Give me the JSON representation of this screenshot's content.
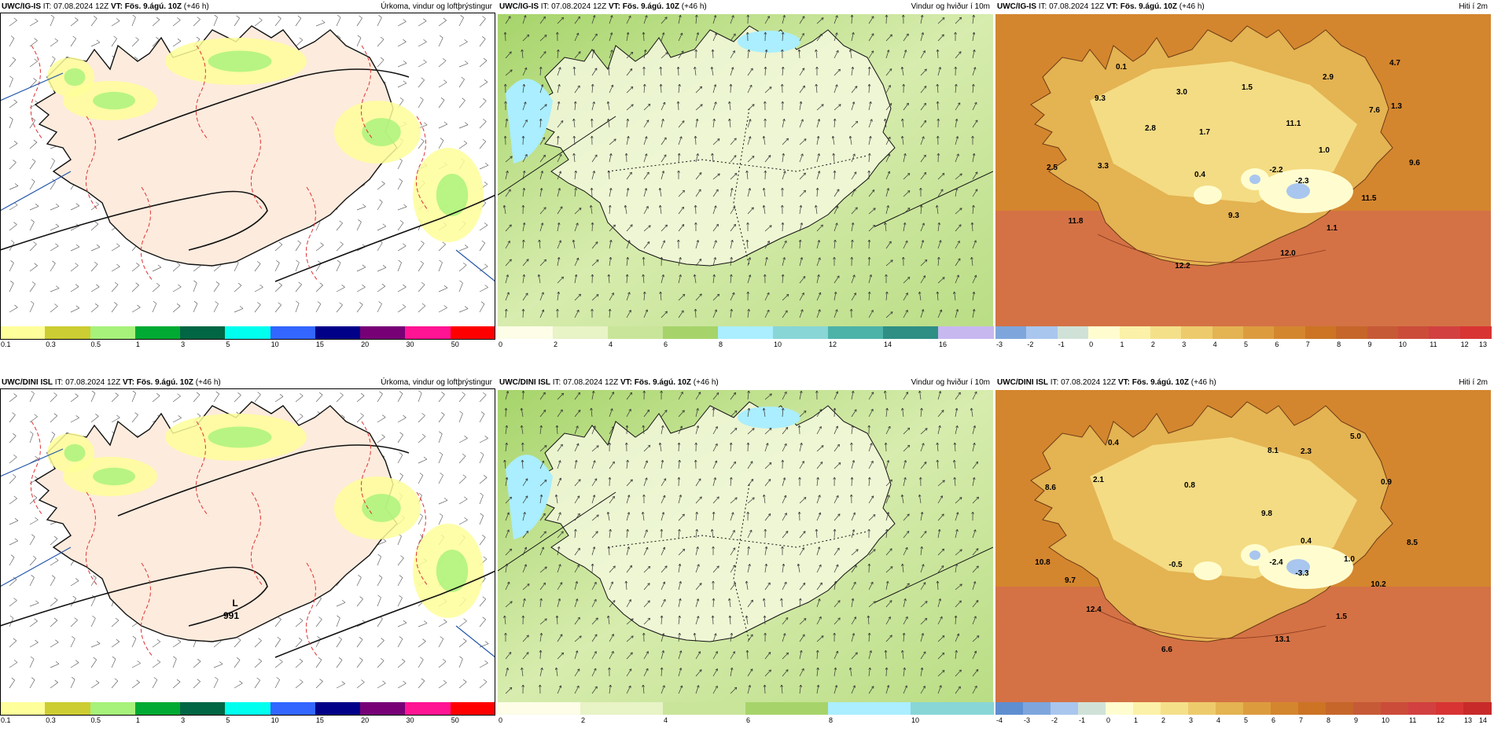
{
  "panels": [
    {
      "id": "p1",
      "model": "UWC/IG-IS",
      "it": "IT: 07.08.2024 12Z",
      "vt_label": "VT:",
      "vt": "Fös. 9.ágú. 10Z",
      "offset": "(+46 h)",
      "title": "Úrkoma, vindur og loftþrýstingur",
      "kind": "precip",
      "colorbar": {
        "colors": [
          "#fefe9a",
          "#cccc33",
          "#a6f27a",
          "#00aa33",
          "#006644",
          "#00ffee",
          "#3366ff",
          "#000088",
          "#770077",
          "#ff1493",
          "#ff0000"
        ],
        "ticks": [
          "0.1",
          "0.3",
          "0.5",
          "1",
          "3",
          "5",
          "10",
          "15",
          "20",
          "30",
          "50"
        ]
      },
      "map_labels": []
    },
    {
      "id": "p2",
      "model": "UWC/IG-IS",
      "it": "IT: 07.08.2024 12Z",
      "vt_label": "VT:",
      "vt": "Fös. 9.ágú. 10Z",
      "offset": "(+46 h)",
      "title": "Vindur og hviður í 10m",
      "kind": "wind",
      "colorbar": {
        "colors": [
          "#fdfde8",
          "#e8f3c6",
          "#c9e59a",
          "#a6d46a",
          "#aaeeff",
          "#88d6d6",
          "#4db3a8",
          "#2f8f85",
          "#c8b8f0"
        ],
        "ticks": [
          "0",
          "2",
          "4",
          "6",
          "8",
          "10",
          "12",
          "14",
          "16"
        ]
      },
      "map_labels": []
    },
    {
      "id": "p3",
      "model": "UWC/IG-IS",
      "it": "IT: 07.08.2024 12Z",
      "vt_label": "VT:",
      "vt": "Fös. 9.ágú. 10Z",
      "offset": "(+46 h)",
      "title": "Hiti í 2m",
      "kind": "temp",
      "colorbar": {
        "colors": [
          "#7ea6dd",
          "#a9c6ee",
          "#d0e2d8",
          "#fffdd0",
          "#fbf1a8",
          "#f5e08a",
          "#edcb6c",
          "#e4b352",
          "#dc9c3e",
          "#d4862e",
          "#cc7424",
          "#c6662a",
          "#c65a36",
          "#cc4c3a",
          "#d24040",
          "#d83434"
        ],
        "ticks": [
          "-3",
          "-2",
          "-1",
          "0",
          "1",
          "2",
          "3",
          "4",
          "5",
          "6",
          "7",
          "8",
          "9",
          "10",
          "11",
          "12",
          "13"
        ]
      },
      "map_labels": [
        "0.1",
        "9.3",
        "3.0",
        "1.5",
        "2.9",
        "4.7",
        "2.8",
        "1.7",
        "11.1",
        "7.6",
        "1.3",
        "1.0",
        "2.5",
        "3.3",
        "0.4",
        "-2.2",
        "-2.3",
        "9.6",
        "11.5",
        "11.8",
        "9.3",
        "1.1",
        "12.0",
        "12.2"
      ]
    },
    {
      "id": "p4",
      "model": "UWC/DINI ISL",
      "it": "IT: 07.08.2024 12Z",
      "vt_label": "VT:",
      "vt": "Fös. 9.ágú. 10Z",
      "offset": "(+46 h)",
      "title": "Úrkoma, vindur og loftþrýstingur",
      "kind": "precip",
      "colorbar": {
        "colors": [
          "#fefe9a",
          "#cccc33",
          "#a6f27a",
          "#00aa33",
          "#006644",
          "#00ffee",
          "#3366ff",
          "#000088",
          "#770077",
          "#ff1493",
          "#ff0000"
        ],
        "ticks": [
          "0.1",
          "0.3",
          "0.5",
          "1",
          "3",
          "5",
          "10",
          "15",
          "20",
          "30",
          "50"
        ]
      },
      "map_labels": [
        "L",
        "991"
      ]
    },
    {
      "id": "p5",
      "model": "UWC/DINI ISL",
      "it": "IT: 07.08.2024 12Z",
      "vt_label": "VT:",
      "vt": "Fös. 9.ágú. 10Z",
      "offset": "(+46 h)",
      "title": "Vindur og hviður í 10m",
      "kind": "wind",
      "colorbar": {
        "colors": [
          "#fdfde8",
          "#e8f3c6",
          "#c9e59a",
          "#a6d46a",
          "#aaeeff",
          "#88d6d6"
        ],
        "ticks": [
          "0",
          "2",
          "4",
          "6",
          "8",
          "10"
        ]
      },
      "map_labels": []
    },
    {
      "id": "p6",
      "model": "UWC/DINI ISL",
      "it": "IT: 07.08.2024 12Z",
      "vt_label": "VT:",
      "vt": "Fös. 9.ágú. 10Z",
      "offset": "(+46 h)",
      "title": "Hiti í 2m",
      "kind": "temp",
      "colorbar": {
        "colors": [
          "#5f8ed0",
          "#7ea6dd",
          "#a9c6ee",
          "#d0e2d8",
          "#fffdd0",
          "#fbf1a8",
          "#f5e08a",
          "#edcb6c",
          "#e4b352",
          "#dc9c3e",
          "#d4862e",
          "#cc7424",
          "#c6662a",
          "#c65a36",
          "#cc4c3a",
          "#d24040",
          "#d83434",
          "#c82a2a"
        ],
        "ticks": [
          "-4",
          "-3",
          "-2",
          "-1",
          "0",
          "1",
          "2",
          "3",
          "4",
          "5",
          "6",
          "7",
          "8",
          "9",
          "10",
          "11",
          "12",
          "13",
          "14"
        ]
      },
      "map_labels": [
        "0.4",
        "5.0",
        "8.1",
        "2.3",
        "8.6",
        "2.1",
        "0.8",
        "0.9",
        "9.8",
        "0.4",
        "8.5",
        "10.8",
        "-0.5",
        "-2.4",
        "-3.3",
        "1.0",
        "9.7",
        "10.2",
        "12.4",
        "1.5",
        "13.1",
        "6.6"
      ]
    }
  ]
}
